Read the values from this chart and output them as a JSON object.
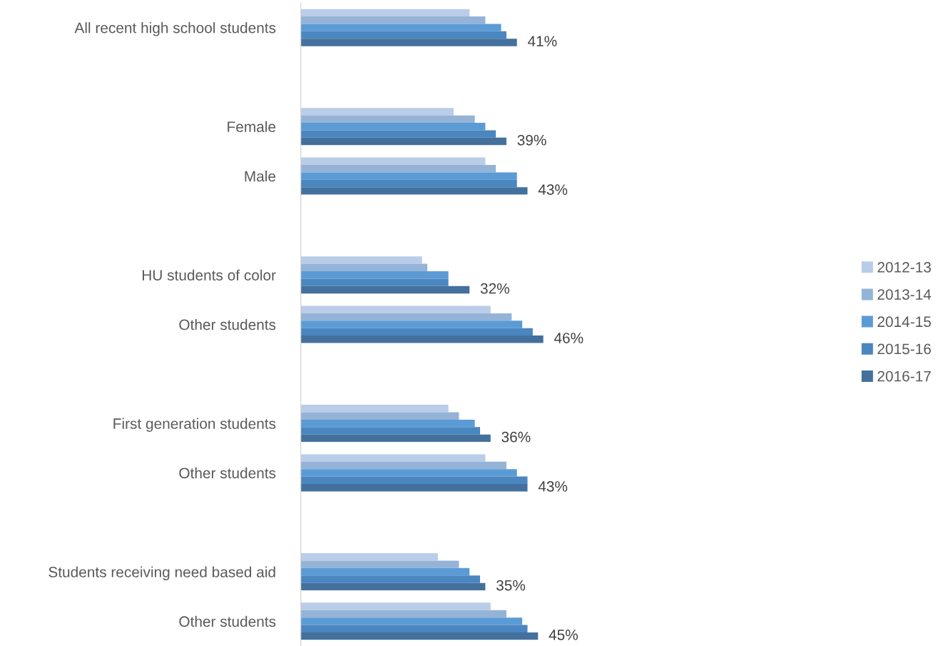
{
  "chart_data": {
    "type": "bar",
    "orientation": "horizontal",
    "categories": [
      "All recent high school students",
      null,
      "Female",
      "Male",
      null,
      "HU students of color",
      "Other students",
      null,
      "First generation students",
      "Other students",
      null,
      "Students receiving need based aid",
      "Other students"
    ],
    "tick_labels": "y",
    "grid": false,
    "legend": "right",
    "series": [
      {
        "name": "2012-13",
        "color": "#b9cde8",
        "values": [
          32,
          null,
          29,
          35,
          null,
          23,
          36,
          null,
          28,
          35,
          null,
          26,
          36
        ]
      },
      {
        "name": "2013-14",
        "color": "#95b3d7",
        "values": [
          35,
          null,
          33,
          37,
          null,
          24,
          40,
          null,
          30,
          39,
          null,
          30,
          39
        ]
      },
      {
        "name": "2014-15",
        "color": "#5b9bd5",
        "values": [
          38,
          null,
          35,
          41,
          null,
          28,
          42,
          null,
          33,
          41,
          null,
          32,
          42
        ]
      },
      {
        "name": "2015-16",
        "color": "#4a86c0",
        "values": [
          39,
          null,
          37,
          41,
          null,
          28,
          44,
          null,
          34,
          43,
          null,
          34,
          43
        ]
      },
      {
        "name": "2016-17",
        "color": "#44709d",
        "values": [
          41,
          null,
          39,
          43,
          null,
          32,
          46,
          null,
          36,
          43,
          null,
          35,
          45
        ],
        "value_labels": [
          "41%",
          null,
          "39%",
          "43%",
          null,
          "32%",
          "46%",
          null,
          "36%",
          "43%",
          null,
          "35%",
          "45%"
        ]
      }
    ]
  }
}
